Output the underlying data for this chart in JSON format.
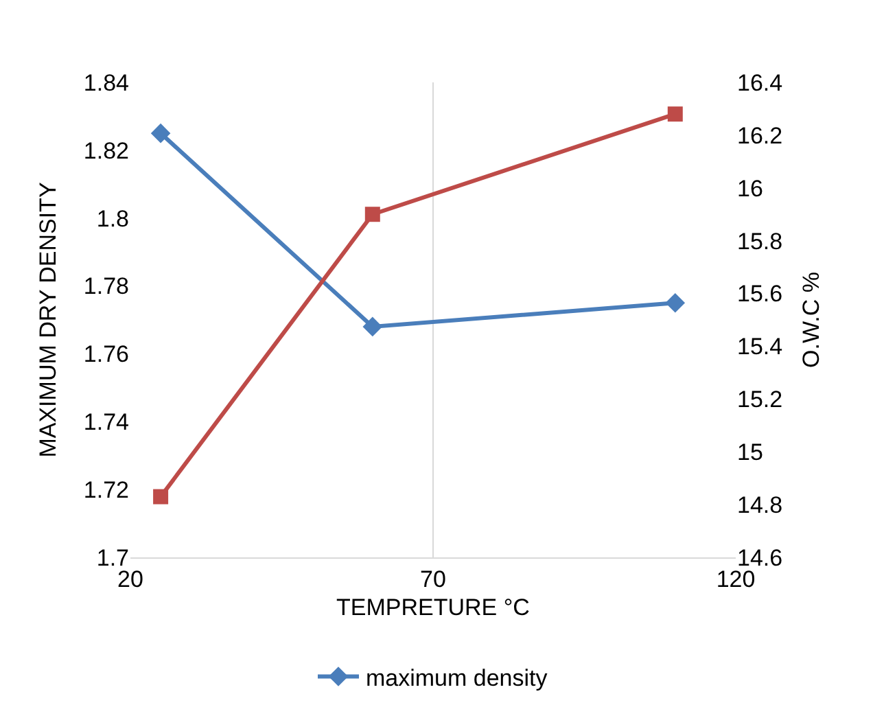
{
  "chart_data": {
    "type": "line",
    "xlabel": "TEMPRETURE °C",
    "ylabel": "MAXIMUM DRY DENSITY",
    "y2label": "O.W.C %",
    "x": [
      25,
      60,
      110
    ],
    "series": [
      {
        "name": "maximum density",
        "color": "#4a7ebb",
        "values": [
          1.825,
          1.768,
          1.775
        ],
        "marker": "diamond"
      },
      {
        "color": "#be4b48",
        "values": [
          14.83,
          15.9,
          16.28
        ],
        "axis": "y2",
        "marker": "square"
      }
    ],
    "xlim": [
      20,
      120
    ],
    "xticks": [
      20,
      70,
      120
    ],
    "ylim": [
      1.7,
      1.84
    ],
    "yticks": [
      {
        "value": 1.7,
        "label": "1.7"
      },
      1.72,
      1.74,
      1.76,
      1.78,
      {
        "value": 1.8,
        "label": "1.8"
      },
      1.82,
      1.84
    ],
    "y2lim": [
      14.6,
      16.4
    ],
    "y2ticks": [
      14.6,
      14.8,
      {
        "value": 15,
        "label": "15"
      },
      15.2,
      15.4,
      15.6,
      15.8,
      {
        "value": 16,
        "label": "16"
      },
      16.2,
      16.4
    ],
    "grid": "x",
    "legend": "bottom",
    "line_style": "solid"
  }
}
